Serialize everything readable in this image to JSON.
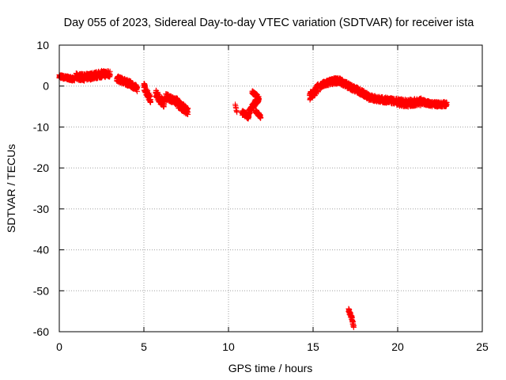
{
  "chart_data": {
    "type": "scatter",
    "title": "Day 055 of 2023, Sidereal Day-to-day VTEC variation (SDTVAR) for receiver ista",
    "xlabel": "GPS time / hours",
    "ylabel": "SDTVAR / TECUs",
    "xlim": [
      0,
      25
    ],
    "ylim": [
      -60,
      10
    ],
    "x_ticks": [
      0,
      5,
      10,
      15,
      20,
      25
    ],
    "y_ticks": [
      10,
      0,
      -10,
      -20,
      -30,
      -40,
      -50,
      -60
    ],
    "x_tick_labels": [
      "0",
      "5",
      "10",
      "15",
      "20",
      "25"
    ],
    "y_tick_labels": [
      "10",
      "0",
      "-10",
      "-20",
      "-30",
      "-40",
      "-50",
      "-60"
    ],
    "grid": true,
    "marker": "+",
    "series_color": "#ff0000",
    "series": [
      {
        "name": "SDTVAR",
        "segments": [
          {
            "x": [
              0.0,
              0.3,
              0.6,
              0.9
            ],
            "y": [
              2.4,
              2.1,
              1.9,
              1.6
            ],
            "spread": 0.9
          },
          {
            "x": [
              1.0,
              1.5,
              2.0,
              2.5,
              3.0
            ],
            "y": [
              2.3,
              2.1,
              2.5,
              2.9,
              3.0
            ],
            "spread": 1.7
          },
          {
            "x": [
              3.4,
              3.8,
              4.2,
              4.6
            ],
            "y": [
              1.8,
              1.2,
              0.5,
              -0.6
            ],
            "spread": 1.5
          },
          {
            "x": [
              5.0,
              5.2,
              5.4
            ],
            "y": [
              0.0,
              -1.8,
              -3.3
            ],
            "spread": 1.8
          },
          {
            "x": [
              5.7,
              6.0,
              6.2
            ],
            "y": [
              -1.8,
              -3.5,
              -4.2
            ],
            "spread": 2.0
          },
          {
            "x": [
              6.3,
              6.7,
              7.0
            ],
            "y": [
              -2.5,
              -3.4,
              -3.8
            ],
            "spread": 1.6
          },
          {
            "x": [
              7.0,
              7.3,
              7.6
            ],
            "y": [
              -4.2,
              -5.3,
              -6.2
            ],
            "spread": 2.0
          },
          {
            "x": [
              10.4,
              10.5
            ],
            "y": [
              -4.5,
              -6.5
            ],
            "spread": 0.3
          },
          {
            "x": [
              10.8,
              11.0,
              11.2
            ],
            "y": [
              -6.5,
              -7.0,
              -7.5
            ],
            "spread": 1.2
          },
          {
            "x": [
              11.2,
              11.5,
              11.8
            ],
            "y": [
              -6.5,
              -4.5,
              -3.0
            ],
            "spread": 1.4
          },
          {
            "x": [
              11.4,
              11.7
            ],
            "y": [
              -1.5,
              -2.5
            ],
            "spread": 0.8
          },
          {
            "x": [
              11.6,
              11.9
            ],
            "y": [
              -6.0,
              -7.5
            ],
            "spread": 1.0
          },
          {
            "x": [
              14.8,
              15.0,
              15.3
            ],
            "y": [
              -2.5,
              -1.8,
              -0.4
            ],
            "spread": 2.0
          },
          {
            "x": [
              15.4,
              15.8,
              16.2,
              16.6
            ],
            "y": [
              0.0,
              0.7,
              1.2,
              1.3
            ],
            "spread": 1.5
          },
          {
            "x": [
              16.6,
              17.2,
              17.8,
              18.3
            ],
            "y": [
              1.2,
              -0.2,
              -1.4,
              -2.6
            ],
            "spread": 1.5
          },
          {
            "x": [
              18.3,
              19.0,
              19.8
            ],
            "y": [
              -2.8,
              -3.3,
              -3.7
            ],
            "spread": 1.4
          },
          {
            "x": [
              19.9,
              20.6,
              21.4
            ],
            "y": [
              -3.9,
              -4.2,
              -3.8
            ],
            "spread": 1.8
          },
          {
            "x": [
              21.4,
              22.0,
              22.5,
              22.9
            ],
            "y": [
              -3.8,
              -4.4,
              -4.5,
              -4.4
            ],
            "spread": 1.2
          },
          {
            "x": [
              17.1,
              17.3,
              17.4
            ],
            "y": [
              -54.8,
              -56.8,
              -58.6
            ],
            "spread": 1.0
          }
        ]
      }
    ]
  }
}
